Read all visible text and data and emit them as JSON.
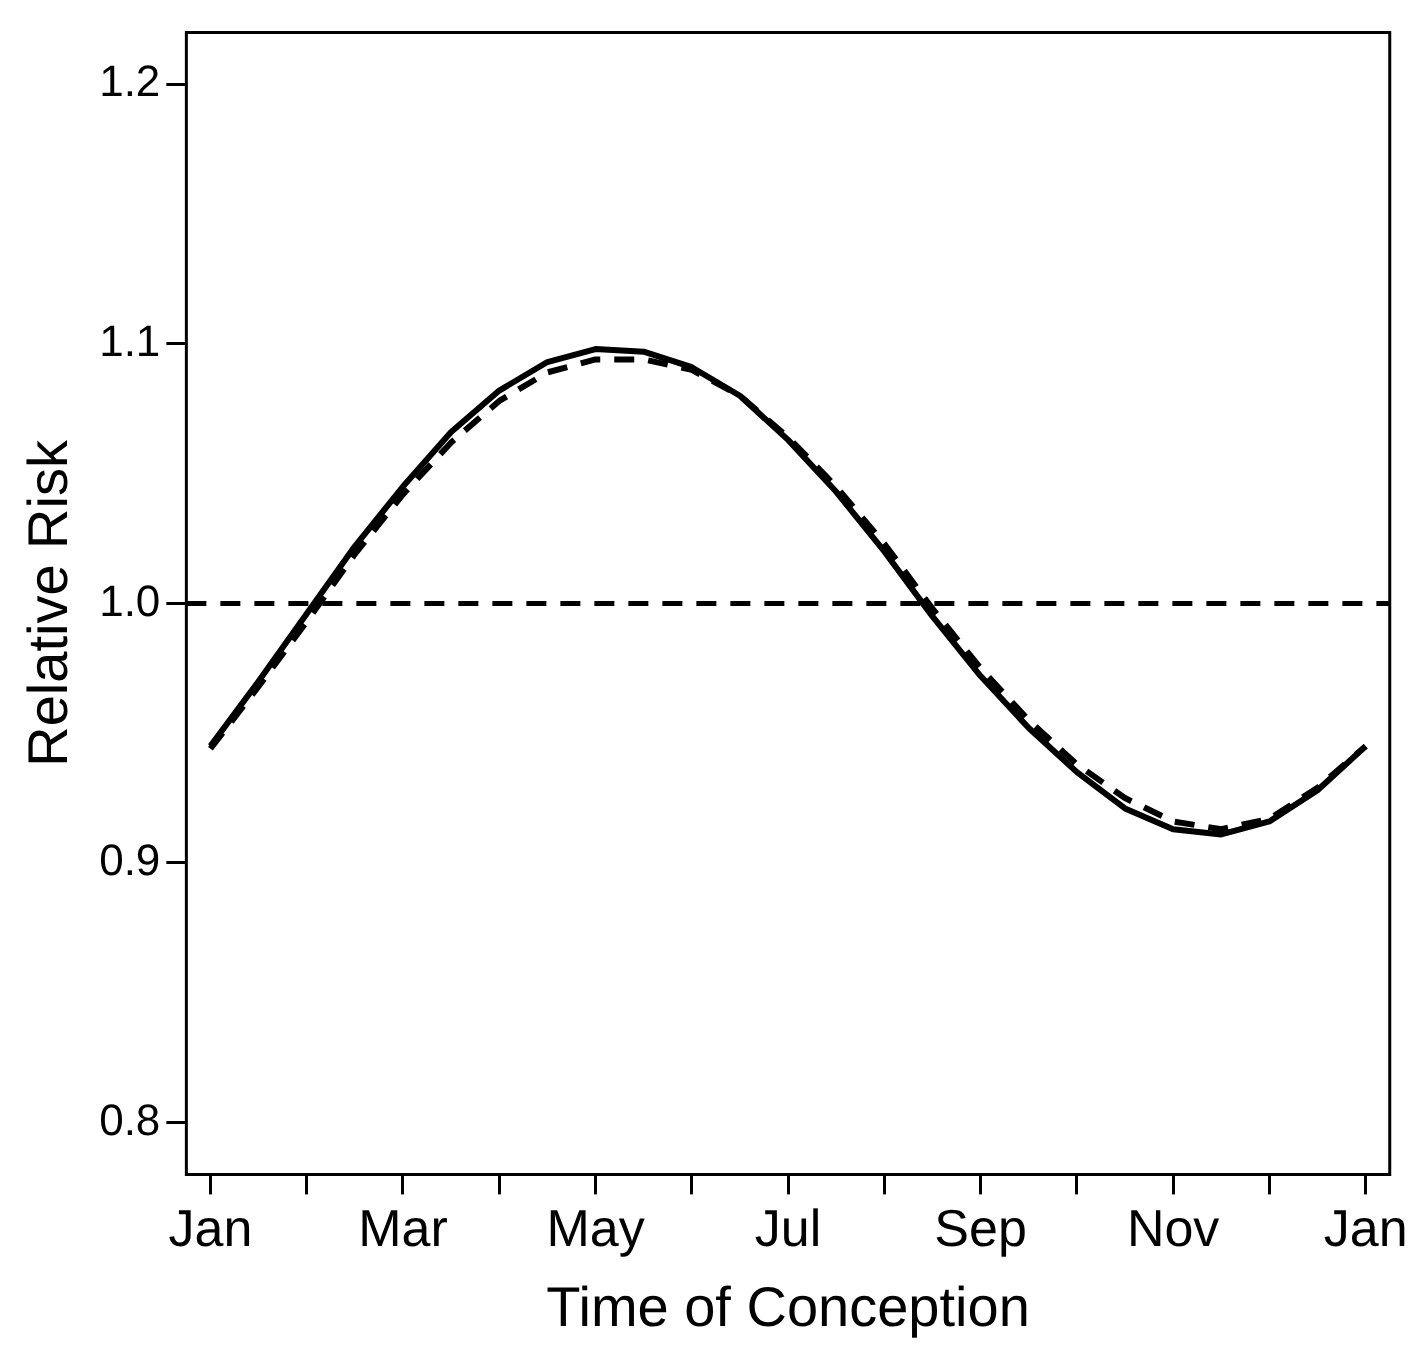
{
  "chart_data": {
    "type": "line",
    "xlabel": "Time of Conception",
    "ylabel": "Relative Risk",
    "ylim": [
      0.78,
      1.22
    ],
    "yticks": [
      0.8,
      0.9,
      {
        "value": 1.0,
        "label": "1.0"
      },
      1.1,
      1.2
    ],
    "categories": [
      "Jan",
      null,
      null,
      null,
      "Mar",
      null,
      null,
      null,
      "May",
      null,
      null,
      null,
      "Jul",
      null,
      null,
      null,
      "Sep",
      null,
      null,
      null,
      "Nov",
      null,
      null,
      null,
      "Jan"
    ],
    "series": [
      {
        "color": "#000000",
        "line_style": "solid",
        "values": [
          0.945,
          0.97,
          0.996,
          1.022,
          1.045,
          1.066,
          1.082,
          1.093,
          1.098,
          1.097,
          1.091,
          1.08,
          1.063,
          1.043,
          1.02,
          0.995,
          0.972,
          0.952,
          0.935,
          0.921,
          0.913,
          0.911,
          0.916,
          0.928,
          0.945
        ]
      },
      {
        "color": "#000000",
        "line_style": "dashed",
        "values": [
          0.944,
          0.968,
          0.993,
          1.019,
          1.042,
          1.062,
          1.078,
          1.089,
          1.094,
          1.094,
          1.09,
          1.08,
          1.064,
          1.045,
          1.023,
          0.998,
          0.975,
          0.955,
          0.938,
          0.925,
          0.916,
          0.913,
          0.917,
          0.929,
          0.945
        ]
      }
    ],
    "ref_lines": [
      {
        "axis": "y",
        "value": 1.0,
        "color": "#000000",
        "line_style": "dashed"
      }
    ],
    "grid": false,
    "legend": false,
    "marker": "none"
  }
}
